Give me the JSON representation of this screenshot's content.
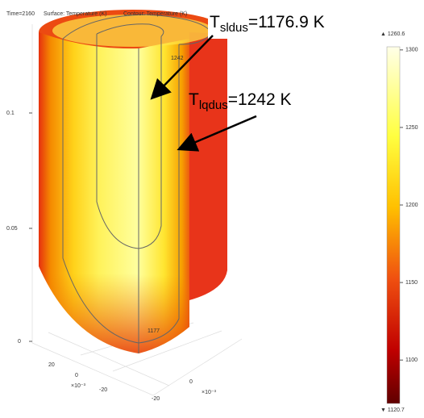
{
  "header": {
    "time": "Time=2160",
    "surface": "Surface: Temperature (K)",
    "contour": "Contour: Temperature (K)"
  },
  "annotations": [
    {
      "symbol": "T",
      "subscript": "sldus",
      "text": "=1176.9 K"
    },
    {
      "symbol": "T",
      "subscript": "lqdus",
      "text": "=1242 K"
    }
  ],
  "contour_labels": [
    "1242",
    "1177"
  ],
  "z_axis": {
    "ticks": [
      "0.1",
      "0.05",
      "0"
    ]
  },
  "x_axis": {
    "ticks": [
      "20",
      "0",
      "-20"
    ],
    "multiplier": "×10⁻³"
  },
  "y_axis": {
    "ticks": [
      "-20",
      "0"
    ],
    "multiplier": "×10⁻³"
  },
  "colorbar": {
    "max": "1260.6",
    "min": "1120.7",
    "range": [
      1072,
      1302
    ],
    "ticks": [
      1100,
      1150,
      1200,
      1250,
      1300
    ]
  }
}
